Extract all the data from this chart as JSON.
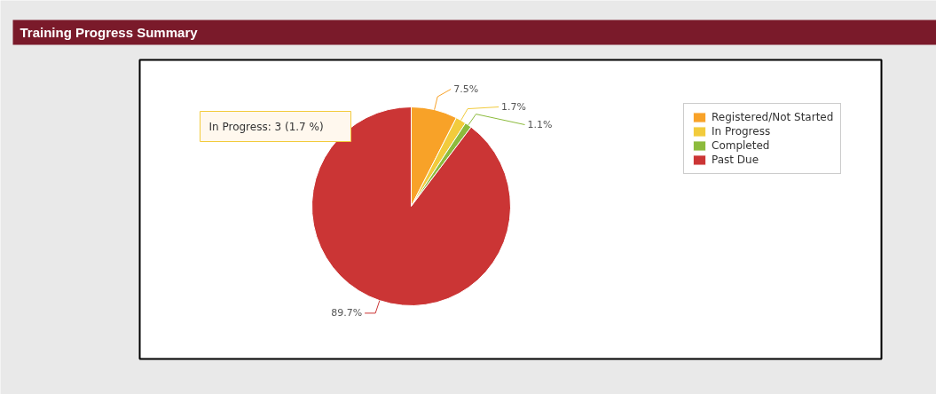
{
  "chart_data": {
    "type": "pie",
    "title": "Training Progress Summary",
    "categories": [
      "Registered/Not Started",
      "In Progress",
      "Completed",
      "Past Due"
    ],
    "values": [
      7.5,
      1.7,
      1.1,
      89.7
    ],
    "colors": [
      "#f8a228",
      "#f2cb3c",
      "#8cbb3c",
      "#cb3535"
    ],
    "value_labels": [
      "7.5%",
      "1.7%",
      "1.1%",
      "89.7%"
    ],
    "legend": "top right",
    "annotations": [
      "In Progress: 3 (1.7 %)"
    ]
  }
}
